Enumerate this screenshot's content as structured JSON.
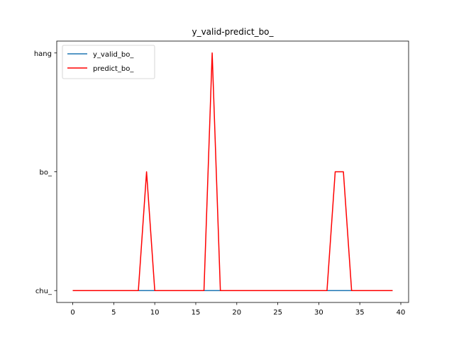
{
  "chart_data": {
    "type": "line",
    "title": "y_valid-predict_bo_",
    "xlabel": "",
    "ylabel": "",
    "xlim": [
      -1.95,
      40.95
    ],
    "ylim": [
      -0.1,
      2.1
    ],
    "x_ticks": [
      0,
      5,
      10,
      15,
      20,
      25,
      30,
      35,
      40
    ],
    "y_ticks": [
      {
        "value": 0,
        "label": "chu_"
      },
      {
        "value": 1,
        "label": "bo_"
      },
      {
        "value": 2,
        "label": "hang"
      }
    ],
    "grid": false,
    "legend_position": "upper-left",
    "x": [
      0,
      1,
      2,
      3,
      4,
      5,
      6,
      7,
      8,
      9,
      10,
      11,
      12,
      13,
      14,
      15,
      16,
      17,
      18,
      19,
      20,
      21,
      22,
      23,
      24,
      25,
      26,
      27,
      28,
      29,
      30,
      31,
      32,
      33,
      34,
      35,
      36,
      37,
      38,
      39
    ],
    "series": [
      {
        "name": "y_valid_bo_",
        "color": "#1f77b4",
        "values": [
          0,
          0,
          0,
          0,
          0,
          0,
          0,
          0,
          0,
          0,
          0,
          0,
          0,
          0,
          0,
          0,
          0,
          0,
          0,
          0,
          0,
          0,
          0,
          0,
          0,
          0,
          0,
          0,
          0,
          0,
          0,
          0,
          0,
          0,
          0,
          0,
          0,
          0,
          0,
          0
        ]
      },
      {
        "name": "predict_bo_",
        "color": "#ff0000",
        "values": [
          0,
          0,
          0,
          0,
          0,
          0,
          0,
          0,
          0,
          1,
          0,
          0,
          0,
          0,
          0,
          0,
          0,
          2,
          0,
          0,
          0,
          0,
          0,
          0,
          0,
          0,
          0,
          0,
          0,
          0,
          0,
          0,
          1,
          1,
          0,
          0,
          0,
          0,
          0,
          0
        ]
      }
    ]
  }
}
